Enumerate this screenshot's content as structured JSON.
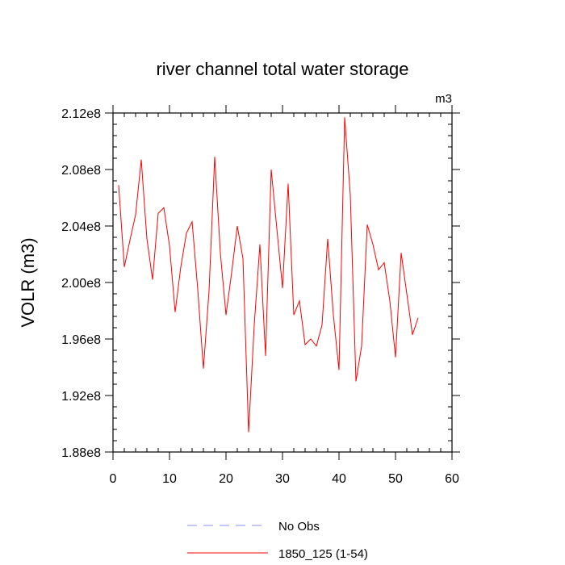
{
  "chart_data": {
    "type": "line",
    "title": "river channel total water storage",
    "units_label": "m3",
    "xlabel": "",
    "ylabel": "VOLR  (m3)",
    "xlim": [
      0,
      60
    ],
    "ylim": [
      188000000,
      212000000
    ],
    "x_ticks": [
      0,
      10,
      20,
      30,
      40,
      50,
      60
    ],
    "x_tick_labels": [
      "0",
      "10",
      "20",
      "30",
      "40",
      "50",
      "60"
    ],
    "y_ticks": [
      188000000,
      192000000,
      196000000,
      200000000,
      204000000,
      208000000,
      212000000
    ],
    "y_tick_labels": [
      "1.88e8",
      "1.92e8",
      "1.96e8",
      "2.00e8",
      "2.04e8",
      "2.08e8",
      "2.12e8"
    ],
    "series": [
      {
        "name": "1850_125 (1-54)",
        "color": "#ff0000",
        "dash": "solid",
        "x": [
          1,
          2,
          3,
          4,
          5,
          6,
          7,
          8,
          9,
          10,
          11,
          12,
          13,
          14,
          15,
          16,
          17,
          18,
          19,
          20,
          21,
          22,
          23,
          24,
          25,
          26,
          27,
          28,
          29,
          30,
          31,
          32,
          33,
          34,
          35,
          36,
          37,
          38,
          39,
          40,
          41,
          42,
          43,
          44,
          45,
          46,
          47,
          48,
          49,
          50,
          51,
          52,
          53,
          54
        ],
        "values": [
          206900000,
          201100000,
          203000000,
          204800000,
          208700000,
          203100000,
          200200000,
          204900000,
          205300000,
          202600000,
          197900000,
          201100000,
          203500000,
          204300000,
          199500000,
          193900000,
          199400000,
          208900000,
          202100000,
          197700000,
          200700000,
          204000000,
          201700000,
          189400000,
          197000000,
          202700000,
          194800000,
          208000000,
          203800000,
          199600000,
          207000000,
          197700000,
          198700000,
          195600000,
          196000000,
          195500000,
          197000000,
          203100000,
          197700000,
          193800000,
          211700000,
          206200000,
          193000000,
          195500000,
          204100000,
          202700000,
          200900000,
          201400000,
          198700000,
          194700000,
          202100000,
          199200000,
          196300000,
          197500000
        ]
      }
    ],
    "legend": {
      "placement": "bottom-center",
      "entries": [
        {
          "label": "No Obs",
          "color": "#8c8cff",
          "dash": "dashed"
        },
        {
          "label": "1850_125 (1-54)",
          "color": "#ff0000",
          "dash": "solid"
        }
      ]
    }
  }
}
